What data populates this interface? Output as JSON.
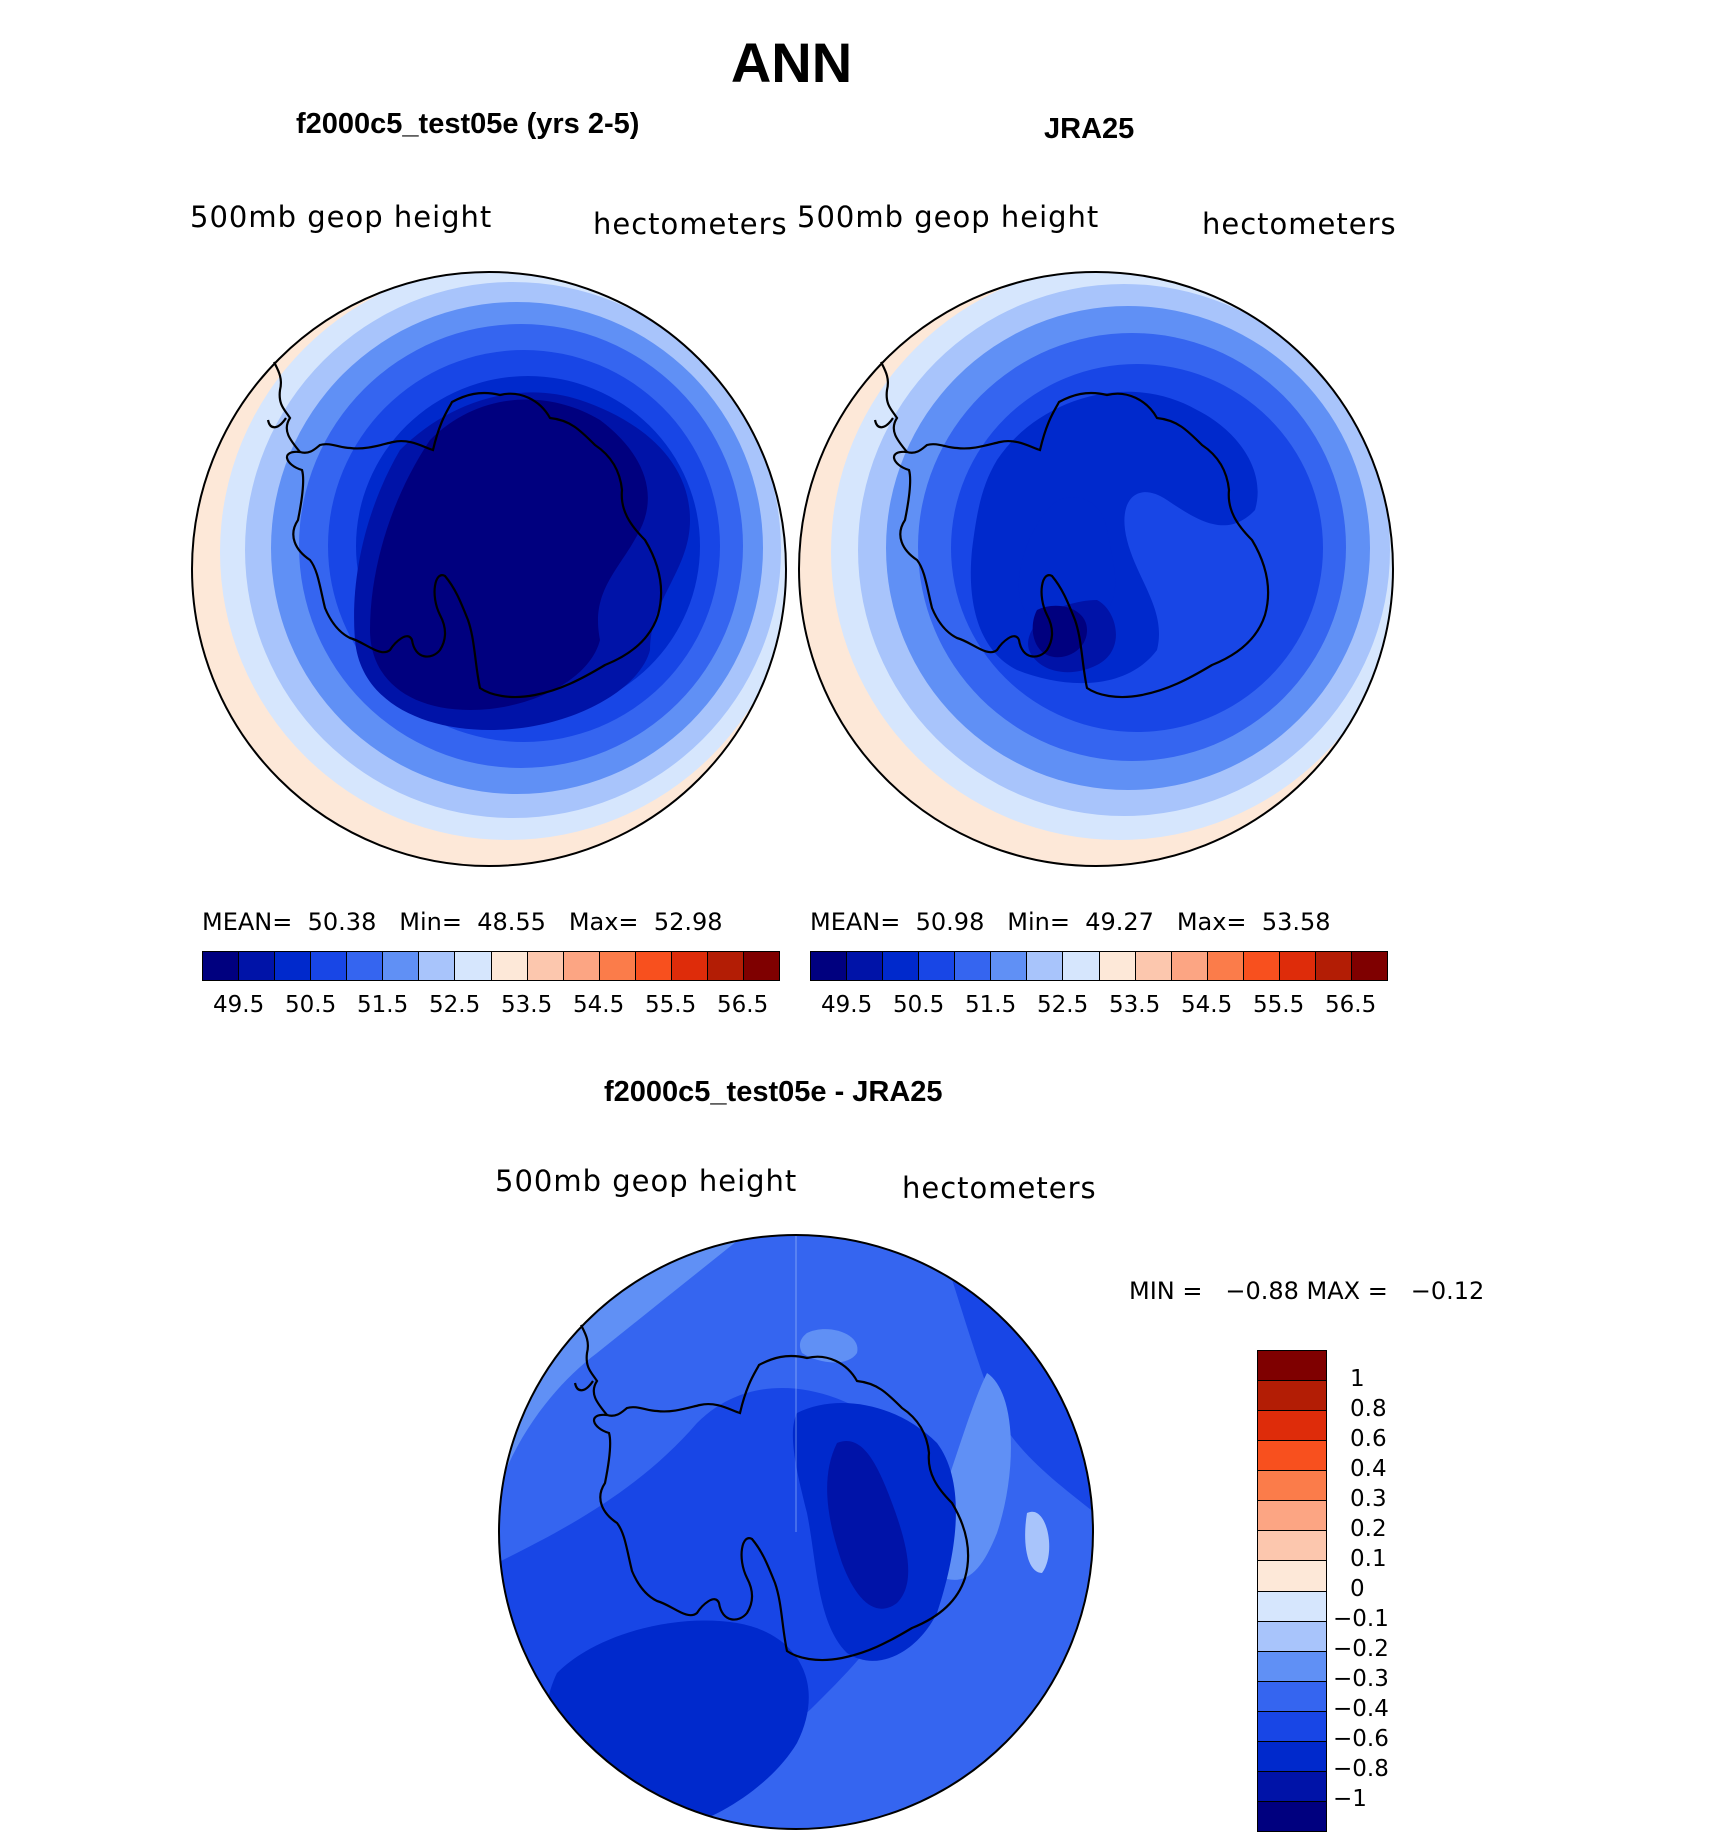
{
  "title": "ANN",
  "panels": [
    {
      "title": "f2000c5_test05e (yrs 2-5)",
      "variable": "500mb geop height",
      "units": "hectometers",
      "stats": {
        "mean_label": "MEAN=",
        "mean": "50.38",
        "min_label": "Min=",
        "min": "48.55",
        "max_label": "Max=",
        "max": "52.98"
      }
    },
    {
      "title": "JRA25",
      "variable": "500mb geop height",
      "units": "hectometers",
      "stats": {
        "mean_label": "MEAN=",
        "mean": "50.98",
        "min_label": "Min=",
        "min": "49.27",
        "max_label": "Max=",
        "max": "53.58"
      }
    },
    {
      "title": "f2000c5_test05e - JRA25",
      "variable": "500mb geop height",
      "units": "hectometers",
      "minmax": "MIN =   −0.88 MAX =   −0.12"
    }
  ],
  "field_colorbar": {
    "colors": [
      "#00007f",
      "#0013a8",
      "#0029cc",
      "#1846e6",
      "#3565f0",
      "#6090f5",
      "#a8c4fb",
      "#d6e6fd",
      "#fde8d8",
      "#fcc7ae",
      "#fca583",
      "#fb7c4a",
      "#f8501e",
      "#de2c0a",
      "#b31d05",
      "#7f0000"
    ],
    "labels": [
      "49.5",
      "50.5",
      "51.5",
      "52.5",
      "53.5",
      "54.5",
      "55.5",
      "56.5"
    ]
  },
  "diff_colorbar": {
    "colors_top_to_bottom": [
      "#7f0000",
      "#b31d05",
      "#de2c0a",
      "#f8501e",
      "#fb7c4a",
      "#fca583",
      "#fcc7ae",
      "#fde8d8",
      "#d6e6fd",
      "#a8c4fb",
      "#6090f5",
      "#3565f0",
      "#1846e6",
      "#0029cc",
      "#0013a8",
      "#00007f"
    ],
    "labels_top_to_bottom": [
      "1",
      "0.8",
      "0.6",
      "0.4",
      "0.3",
      "0.2",
      "0.1",
      "0",
      "−0.1",
      "−0.2",
      "−0.3",
      "−0.4",
      "−0.6",
      "−0.8",
      "−1"
    ]
  }
}
